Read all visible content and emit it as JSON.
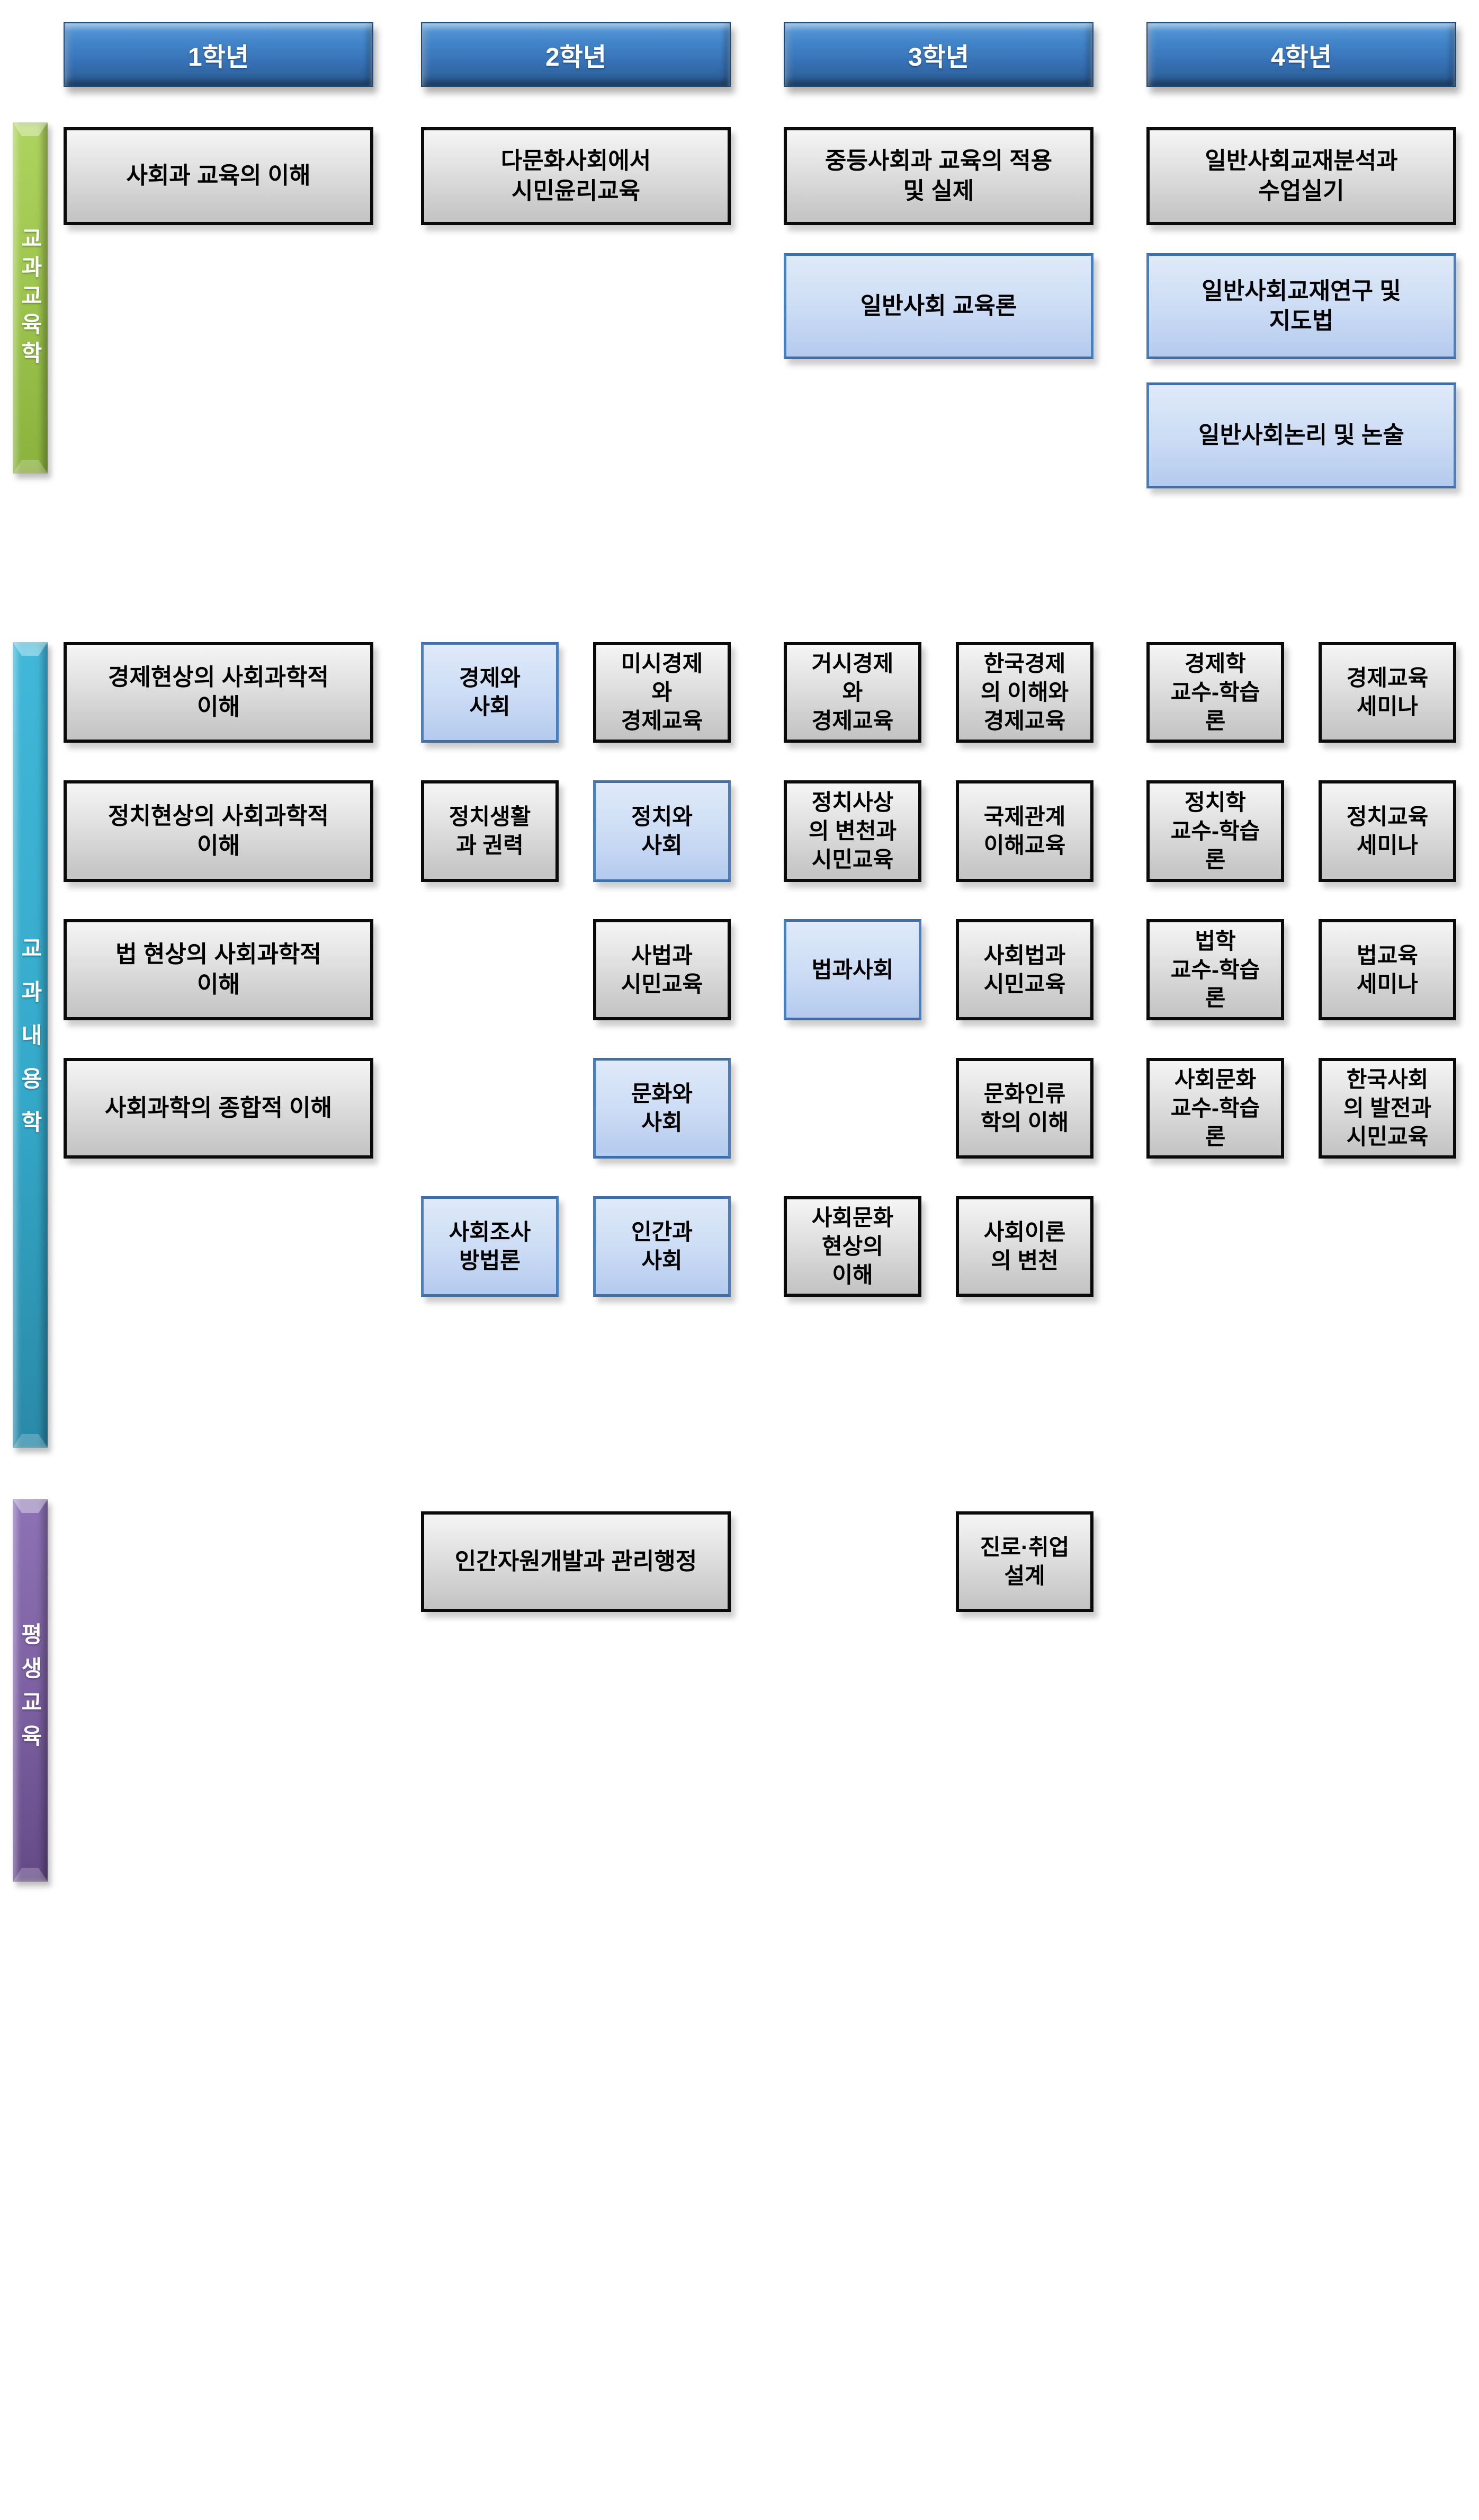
{
  "page": {
    "background": "#ffffff",
    "colors": {
      "header_blue": "#366fb3",
      "bar_green": "#9dc44e",
      "bar_teal": "#35a9c9",
      "bar_purple": "#7b5fa0",
      "box_gray": "#d9d9d9",
      "box_blue": "#c7d9f2",
      "box_blue_border": "#4a7fbe"
    }
  },
  "year_headers": [
    {
      "label": "1학년"
    },
    {
      "label": "2학년"
    },
    {
      "label": "3학년"
    },
    {
      "label": "4학년"
    }
  ],
  "sections": [
    {
      "label": "교과교육학",
      "boxes": [
        {
          "label": "사회과 교육의 이해",
          "variant": "gray"
        },
        {
          "label": "다문화사회에서\n시민윤리교육",
          "variant": "gray"
        },
        {
          "label": "중등사회과 교육의 적용\n및 실제",
          "variant": "gray"
        },
        {
          "label": "일반사회교재분석과\n수업실기",
          "variant": "gray"
        },
        {
          "label": "일반사회 교육론",
          "variant": "blue"
        },
        {
          "label": "일반사회교재연구 및\n지도법",
          "variant": "blue"
        },
        {
          "label": "일반사회논리 및 논술",
          "variant": "blue"
        }
      ]
    },
    {
      "label": "교과내용학",
      "boxes": [
        {
          "label": "경제현상의 사회과학적\n이해",
          "variant": "gray"
        },
        {
          "label": "경제와\n사회",
          "variant": "blue"
        },
        {
          "label": "미시경제\n와\n경제교육",
          "variant": "gray"
        },
        {
          "label": "거시경제\n와\n경제교육",
          "variant": "gray"
        },
        {
          "label": "한국경제\n의 이해와\n경제교육",
          "variant": "gray"
        },
        {
          "label": "경제학\n교수-학습\n론",
          "variant": "gray"
        },
        {
          "label": "경제교육\n세미나",
          "variant": "gray"
        },
        {
          "label": "정치현상의 사회과학적\n이해",
          "variant": "gray"
        },
        {
          "label": "정치생활\n과 권력",
          "variant": "gray"
        },
        {
          "label": "정치와\n사회",
          "variant": "blue"
        },
        {
          "label": "정치사상\n의 변천과\n시민교육",
          "variant": "gray"
        },
        {
          "label": "국제관계\n이해교육",
          "variant": "gray"
        },
        {
          "label": "정치학\n교수-학습\n론",
          "variant": "gray"
        },
        {
          "label": "정치교육\n세미나",
          "variant": "gray"
        },
        {
          "label": "법 현상의 사회과학적\n이해",
          "variant": "gray"
        },
        {
          "label": "사법과\n시민교육",
          "variant": "gray"
        },
        {
          "label": "법과사회",
          "variant": "blue"
        },
        {
          "label": "사회법과\n시민교육",
          "variant": "gray"
        },
        {
          "label": "법학\n교수-학습\n론",
          "variant": "gray"
        },
        {
          "label": "법교육\n세미나",
          "variant": "gray"
        },
        {
          "label": "사회과학의 종합적 이해",
          "variant": "gray"
        },
        {
          "label": "문화와\n사회",
          "variant": "blue"
        },
        {
          "label": "문화인류\n학의 이해",
          "variant": "gray"
        },
        {
          "label": "사회문화\n교수-학습\n론",
          "variant": "gray"
        },
        {
          "label": "한국사회\n의 발전과\n시민교육",
          "variant": "gray"
        },
        {
          "label": "사회조사\n방법론",
          "variant": "blue"
        },
        {
          "label": "인간과\n사회",
          "variant": "blue"
        },
        {
          "label": "사회문화\n현상의\n이해",
          "variant": "gray"
        },
        {
          "label": "사회이론\n의 변천",
          "variant": "gray"
        }
      ]
    },
    {
      "label": "평생교육",
      "boxes": [
        {
          "label": "인간자원개발과 관리행정",
          "variant": "gray"
        },
        {
          "label": "진로·취업\n설계",
          "variant": "gray"
        }
      ]
    }
  ]
}
